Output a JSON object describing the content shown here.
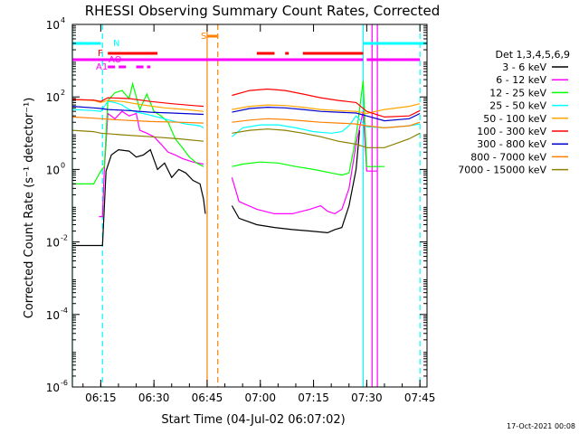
{
  "chart_data": {
    "type": "line",
    "title": "RHESSI Observing Summary Count Rates, Corrected",
    "xlabel": "Start Time (04-Jul-02 06:07:02)",
    "ylabel": "Corrected Count Rate (s⁻¹ detector⁻¹)",
    "y_scale": "log",
    "ylim": [
      1e-06,
      10000.0
    ],
    "xlim_minutes_since_0607": [
      0,
      100
    ],
    "x_ticks": [
      {
        "label": "06:15",
        "minutes": 8
      },
      {
        "label": "06:30",
        "minutes": 23
      },
      {
        "label": "06:45",
        "minutes": 38
      },
      {
        "label": "07:00",
        "minutes": 53
      },
      {
        "label": "07:15",
        "minutes": 68
      },
      {
        "label": "07:30",
        "minutes": 83
      },
      {
        "label": "07:45",
        "minutes": 98
      }
    ],
    "y_ticks": [
      {
        "label_base": "10",
        "label_exp": "-6",
        "value": 1e-06
      },
      {
        "label_base": "10",
        "label_exp": "-4",
        "value": 0.0001
      },
      {
        "label_base": "10",
        "label_exp": "-2",
        "value": 0.01
      },
      {
        "label_base": "10",
        "label_exp": "0",
        "value": 1
      },
      {
        "label_base": "10",
        "label_exp": "2",
        "value": 100
      },
      {
        "label_base": "10",
        "label_exp": "4",
        "value": 10000
      }
    ],
    "legend_title": "Det 1,3,4,5,6,9",
    "legend_placement": "right",
    "series": [
      {
        "name": "3 - 6 keV",
        "color": "#000000",
        "segments": [
          [
            [
              0,
              0.008
            ],
            [
              8.5,
              0.008
            ],
            [
              9.5,
              0.9
            ],
            [
              11,
              2.5
            ],
            [
              13,
              3.5
            ],
            [
              16,
              3.2
            ],
            [
              18,
              2.2
            ],
            [
              20,
              2.5
            ],
            [
              22,
              3.5
            ],
            [
              24,
              1.0
            ],
            [
              26,
              1.5
            ],
            [
              28,
              0.6
            ],
            [
              30,
              1.0
            ],
            [
              32,
              0.8
            ],
            [
              34,
              0.5
            ],
            [
              36,
              0.4
            ],
            [
              37,
              0.15
            ],
            [
              37.5,
              0.06
            ]
          ],
          [
            [
              45,
              0.1
            ],
            [
              47,
              0.045
            ],
            [
              52,
              0.03
            ],
            [
              57,
              0.025
            ],
            [
              62,
              0.022
            ],
            [
              67,
              0.02
            ],
            [
              72,
              0.018
            ],
            [
              74,
              0.022
            ],
            [
              76,
              0.025
            ],
            [
              78,
              0.1
            ],
            [
              80,
              1
            ],
            [
              81,
              12
            ]
          ]
        ]
      },
      {
        "name": "6 - 12 keV",
        "color": "#ff00ff",
        "segments": [
          [
            [
              7.5,
              0.05
            ],
            [
              8.5,
              0.05
            ],
            [
              9,
              1
            ],
            [
              10,
              35
            ],
            [
              12,
              25
            ],
            [
              14,
              40
            ],
            [
              16,
              30
            ],
            [
              18,
              35
            ],
            [
              19,
              12
            ],
            [
              21,
              10
            ],
            [
              23,
              8
            ],
            [
              25,
              5
            ],
            [
              27,
              3
            ],
            [
              29,
              2.5
            ],
            [
              31,
              2.0
            ],
            [
              34,
              1.6
            ],
            [
              37,
              1.4
            ]
          ],
          [
            [
              45,
              0.6
            ],
            [
              47,
              0.13
            ],
            [
              52,
              0.08
            ],
            [
              57,
              0.06
            ],
            [
              62,
              0.06
            ],
            [
              67,
              0.08
            ],
            [
              70,
              0.1
            ],
            [
              72,
              0.07
            ],
            [
              74,
              0.06
            ],
            [
              76,
              0.08
            ],
            [
              78,
              0.3
            ],
            [
              80,
              5
            ],
            [
              82,
              40
            ],
            [
              83,
              0.9
            ],
            [
              86,
              0.9
            ]
          ]
        ]
      },
      {
        "name": "12 - 25 keV",
        "color": "#00ff00",
        "segments": [
          [
            [
              0,
              0.4
            ],
            [
              6,
              0.4
            ],
            [
              8,
              0.9
            ],
            [
              9,
              1.2
            ],
            [
              10,
              80
            ],
            [
              12,
              130
            ],
            [
              14,
              150
            ],
            [
              16,
              90
            ],
            [
              17,
              230
            ],
            [
              19,
              45
            ],
            [
              21,
              120
            ],
            [
              23,
              40
            ],
            [
              25,
              30
            ],
            [
              27,
              20
            ],
            [
              29,
              7
            ],
            [
              31,
              4
            ],
            [
              33,
              2.2
            ],
            [
              35,
              1.5
            ],
            [
              37,
              1.2
            ]
          ],
          [
            [
              45,
              1.2
            ],
            [
              48,
              1.4
            ],
            [
              53,
              1.6
            ],
            [
              58,
              1.5
            ],
            [
              63,
              1.2
            ],
            [
              68,
              1.0
            ],
            [
              73,
              0.8
            ],
            [
              76,
              0.7
            ],
            [
              78,
              0.8
            ],
            [
              80,
              8
            ],
            [
              82,
              280
            ],
            [
              83,
              1.2
            ],
            [
              88,
              1.2
            ]
          ]
        ]
      },
      {
        "name": "25 - 50 keV",
        "color": "#00ffff",
        "segments": [
          [
            [
              0,
              45
            ],
            [
              6,
              42
            ],
            [
              8,
              40
            ],
            [
              10,
              75
            ],
            [
              12,
              70
            ],
            [
              14,
              60
            ],
            [
              16,
              45
            ],
            [
              18,
              38
            ],
            [
              20,
              35
            ],
            [
              24,
              28
            ],
            [
              28,
              22
            ],
            [
              32,
              18
            ],
            [
              36,
              16
            ],
            [
              37,
              14
            ]
          ],
          [
            [
              45,
              8
            ],
            [
              48,
              14
            ],
            [
              53,
              17
            ],
            [
              58,
              17
            ],
            [
              63,
              14
            ],
            [
              68,
              11
            ],
            [
              73,
              10
            ],
            [
              76,
              11
            ],
            [
              78,
              16
            ],
            [
              80,
              30
            ],
            [
              83,
              15
            ],
            [
              88,
              14
            ],
            [
              95,
              16
            ],
            [
              98,
              18
            ]
          ]
        ]
      },
      {
        "name": "50 - 100 keV",
        "color": "#ffa500",
        "segments": [
          [
            [
              0,
              85
            ],
            [
              6,
              80
            ],
            [
              8,
              70
            ],
            [
              10,
              80
            ],
            [
              14,
              75
            ],
            [
              20,
              60
            ],
            [
              26,
              50
            ],
            [
              32,
              45
            ],
            [
              37,
              40
            ]
          ],
          [
            [
              45,
              45
            ],
            [
              50,
              55
            ],
            [
              55,
              60
            ],
            [
              60,
              58
            ],
            [
              65,
              52
            ],
            [
              70,
              45
            ],
            [
              75,
              42
            ],
            [
              80,
              40
            ],
            [
              83,
              35
            ],
            [
              88,
              45
            ],
            [
              95,
              55
            ],
            [
              98,
              65
            ]
          ]
        ]
      },
      {
        "name": "100 - 300 keV",
        "color": "#ff0000",
        "segments": [
          [
            [
              0,
              85
            ],
            [
              6,
              82
            ],
            [
              8,
              75
            ],
            [
              10,
              95
            ],
            [
              16,
              90
            ],
            [
              22,
              75
            ],
            [
              28,
              65
            ],
            [
              34,
              58
            ],
            [
              37,
              55
            ]
          ],
          [
            [
              45,
              110
            ],
            [
              50,
              150
            ],
            [
              55,
              165
            ],
            [
              60,
              150
            ],
            [
              65,
              120
            ],
            [
              70,
              95
            ],
            [
              75,
              80
            ],
            [
              80,
              70
            ],
            [
              83,
              40
            ],
            [
              88,
              28
            ],
            [
              95,
              30
            ],
            [
              98,
              42
            ]
          ]
        ]
      },
      {
        "name": "300 - 800 keV",
        "color": "#0000cc",
        "segments": [
          [
            [
              0,
              55
            ],
            [
              6,
              50
            ],
            [
              8,
              48
            ],
            [
              10,
              45
            ],
            [
              16,
              42
            ],
            [
              22,
              38
            ],
            [
              28,
              36
            ],
            [
              34,
              34
            ],
            [
              37,
              33
            ]
          ],
          [
            [
              45,
              38
            ],
            [
              50,
              48
            ],
            [
              55,
              52
            ],
            [
              60,
              50
            ],
            [
              65,
              45
            ],
            [
              70,
              40
            ],
            [
              75,
              38
            ],
            [
              80,
              36
            ],
            [
              83,
              30
            ],
            [
              88,
              22
            ],
            [
              95,
              25
            ],
            [
              98,
              35
            ]
          ]
        ]
      },
      {
        "name": "800 - 7000 keV",
        "color": "#ff8000",
        "segments": [
          [
            [
              0,
              28
            ],
            [
              6,
              26
            ],
            [
              8,
              25
            ],
            [
              14,
              23
            ],
            [
              22,
              21
            ],
            [
              30,
              20
            ],
            [
              37,
              19
            ]
          ],
          [
            [
              45,
              20
            ],
            [
              50,
              23
            ],
            [
              55,
              25
            ],
            [
              60,
              24
            ],
            [
              65,
              22
            ],
            [
              70,
              20
            ],
            [
              75,
              19
            ],
            [
              80,
              18
            ],
            [
              83,
              16
            ],
            [
              88,
              14
            ],
            [
              95,
              16
            ],
            [
              98,
              20
            ]
          ]
        ]
      },
      {
        "name": "7000 - 15000 keV",
        "color": "#8b8000",
        "segments": [
          [
            [
              0,
              12
            ],
            [
              6,
              11
            ],
            [
              8,
              10
            ],
            [
              14,
              9
            ],
            [
              22,
              8
            ],
            [
              30,
              7
            ],
            [
              37,
              6
            ]
          ],
          [
            [
              45,
              10
            ],
            [
              50,
              12
            ],
            [
              55,
              13
            ],
            [
              60,
              12
            ],
            [
              65,
              10
            ],
            [
              70,
              8
            ],
            [
              75,
              6
            ],
            [
              80,
              5
            ],
            [
              83,
              4
            ],
            [
              88,
              4
            ],
            [
              95,
              7
            ],
            [
              98,
              10
            ]
          ]
        ]
      }
    ],
    "state_bars": [
      {
        "label": "N",
        "color": "#00ffff",
        "spans": [
          [
            0,
            8
          ],
          [
            82,
            100
          ]
        ]
      },
      {
        "label": "S",
        "color": "#ff8000",
        "spans": [
          [
            38,
            41
          ]
        ]
      },
      {
        "label": "F",
        "color": "#ff0000",
        "spans": [
          [
            10,
            24
          ],
          [
            52,
            57
          ],
          [
            60,
            61
          ],
          [
            65,
            82
          ]
        ]
      },
      {
        "label": "AO",
        "color": "#ff00ff",
        "spans": [
          [
            0,
            82
          ],
          [
            83,
            98
          ]
        ]
      },
      {
        "label": "A1",
        "color": "#ff00ff",
        "spans": [
          [
            10,
            16
          ],
          [
            18,
            22
          ]
        ]
      }
    ],
    "vertical_lines": [
      {
        "minutes": 0,
        "color": "#00ffff",
        "style": "solid"
      },
      {
        "minutes": 8.5,
        "color": "#00ffff",
        "style": "dashed"
      },
      {
        "minutes": 38,
        "color": "#ff8000",
        "style": "solid"
      },
      {
        "minutes": 41,
        "color": "#ff8000",
        "style": "dashed"
      },
      {
        "minutes": 82,
        "color": "#00ffff",
        "style": "solid"
      },
      {
        "minutes": 84.5,
        "color": "#ff00ff",
        "style": "solid"
      },
      {
        "minutes": 86,
        "color": "#ff00ff",
        "style": "solid"
      },
      {
        "minutes": 98,
        "color": "#00ffff",
        "style": "dashed"
      }
    ],
    "footer_date": "17-Oct-2021 00:08"
  }
}
